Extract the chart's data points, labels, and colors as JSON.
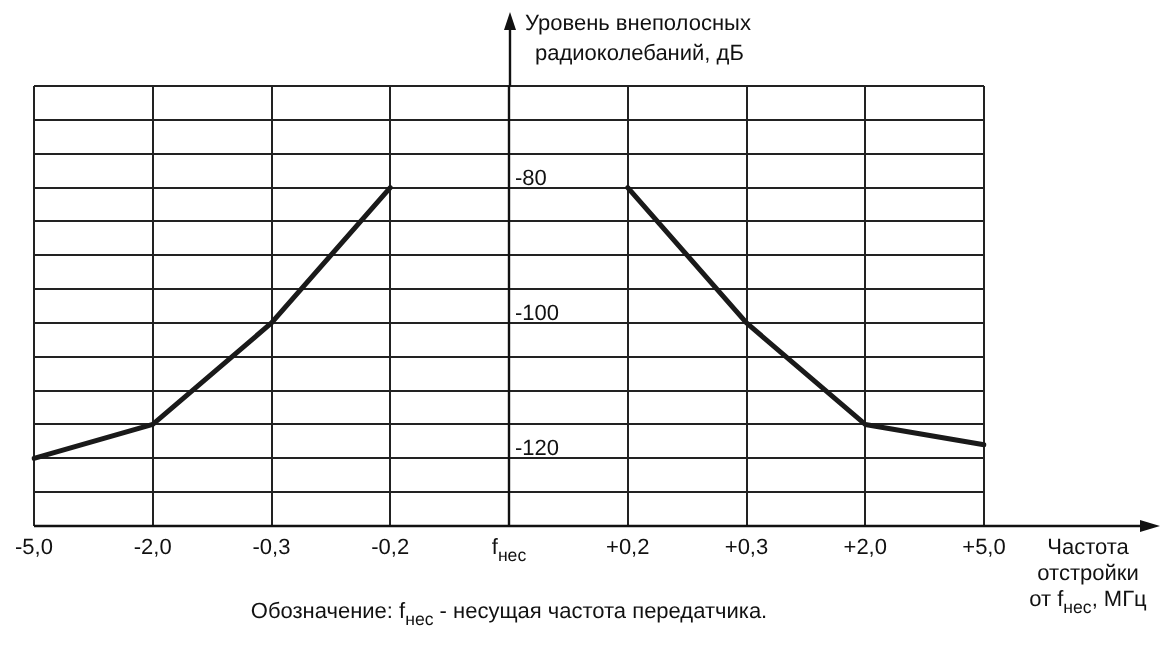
{
  "chart_data": {
    "type": "line",
    "xlabel": "Частота отстройки от f$_{нес}$, МГц",
    "ylabel": "Уровень внеполосных радиоколебаний, дБ",
    "annotations": [
      "Обозначение: f$_{нес}$ - несущая частота передатчика."
    ],
    "categories": [
      "-5,0",
      "-2,0",
      "-0,3",
      "-0,2",
      "f$_{нес}$",
      "+0,2",
      "+0,3",
      "+2,0",
      "+5,0"
    ],
    "series": [
      {
        "color": "#1a1a1a",
        "values": [
          -120,
          -115,
          -100,
          -80,
          null,
          -80,
          -100,
          -115,
          -118
        ]
      }
    ],
    "ylim": [
      -130,
      -65
    ],
    "yticks": [
      {
        "value": -130,
        "label": null
      },
      {
        "value": -125,
        "label": null
      },
      -120,
      {
        "value": -115,
        "label": null
      },
      {
        "value": -110,
        "label": null
      },
      {
        "value": -105,
        "label": null
      },
      -100,
      {
        "value": -95,
        "label": null
      },
      {
        "value": -90,
        "label": null
      },
      {
        "value": -85,
        "label": null
      },
      -80,
      {
        "value": -75,
        "label": null
      },
      {
        "value": -70,
        "label": null
      },
      {
        "value": -65,
        "label": null
      }
    ],
    "grid": true,
    "legend": false,
    "marker": "none",
    "line_style": "solid"
  }
}
